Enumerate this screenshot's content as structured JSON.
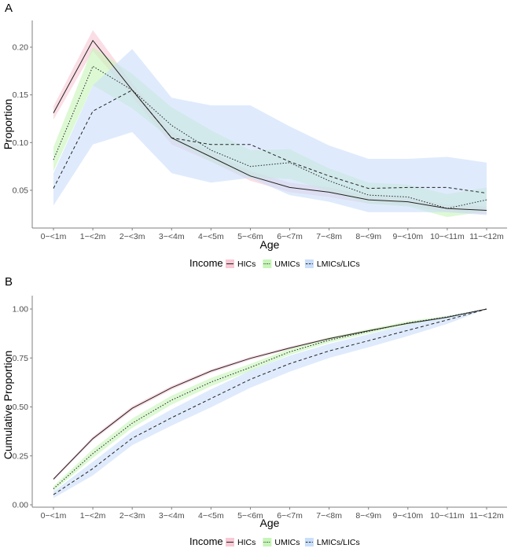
{
  "chart_data": [
    {
      "type": "line",
      "panel": "A",
      "title": "",
      "xlabel": "Age",
      "ylabel": "Proportion",
      "categories": [
        "0−<1m",
        "1−<2m",
        "2−<3m",
        "3−<4m",
        "4−<5m",
        "5−<6m",
        "6−<7m",
        "7−<8m",
        "8−<9m",
        "9−<10m",
        "10−<11m",
        "11−<12m"
      ],
      "ylim": [
        0.013,
        0.225
      ],
      "yticks": [
        0.05,
        0.1,
        0.15,
        0.2
      ],
      "ytick_labels": [
        "0.05",
        "0.10",
        "0.15",
        "0.20"
      ],
      "grid": false,
      "legend": {
        "title": "Income",
        "position": "bottom"
      },
      "series": [
        {
          "name": "HICs",
          "linestyle": "solid",
          "fill": "#f8c8d4",
          "values": [
            0.131,
            0.207,
            0.155,
            0.105,
            0.085,
            0.065,
            0.053,
            0.048,
            0.04,
            0.038,
            0.031,
            0.029
          ],
          "lower": [
            0.124,
            0.196,
            0.148,
            0.098,
            0.08,
            0.06,
            0.048,
            0.043,
            0.036,
            0.034,
            0.027,
            0.025
          ],
          "upper": [
            0.138,
            0.218,
            0.162,
            0.112,
            0.09,
            0.07,
            0.058,
            0.053,
            0.044,
            0.042,
            0.035,
            0.033
          ]
        },
        {
          "name": "UMICs",
          "linestyle": "dotted",
          "fill": "#c6f5b8",
          "values": [
            0.082,
            0.18,
            0.155,
            0.118,
            0.092,
            0.075,
            0.079,
            0.06,
            0.045,
            0.043,
            0.031,
            0.04
          ],
          "lower": [
            0.07,
            0.16,
            0.136,
            0.103,
            0.08,
            0.063,
            0.062,
            0.049,
            0.036,
            0.033,
            0.022,
            0.028
          ],
          "upper": [
            0.095,
            0.2,
            0.172,
            0.137,
            0.113,
            0.092,
            0.093,
            0.073,
            0.058,
            0.056,
            0.046,
            0.053
          ]
        },
        {
          "name": "LMICs/LICs",
          "linestyle": "dashed",
          "fill": "#c9defa",
          "values": [
            0.052,
            0.133,
            0.155,
            0.105,
            0.098,
            0.098,
            0.08,
            0.065,
            0.052,
            0.053,
            0.053,
            0.047
          ],
          "lower": [
            0.034,
            0.098,
            0.111,
            0.068,
            0.058,
            0.063,
            0.045,
            0.038,
            0.027,
            0.027,
            0.027,
            0.024
          ],
          "upper": [
            0.068,
            0.16,
            0.198,
            0.147,
            0.139,
            0.139,
            0.117,
            0.097,
            0.083,
            0.083,
            0.085,
            0.079
          ]
        }
      ]
    },
    {
      "type": "line",
      "panel": "B",
      "title": "",
      "xlabel": "Age",
      "ylabel": "Cumulative Proportion",
      "categories": [
        "0−<1m",
        "1−<2m",
        "2−<3m",
        "3−<4m",
        "4−<5m",
        "5−<6m",
        "6−<7m",
        "7−<8m",
        "8−<9m",
        "9−<10m",
        "10−<11m",
        "11−<12m"
      ],
      "ylim": [
        -0.01,
        1.05
      ],
      "yticks": [
        0.0,
        0.25,
        0.5,
        0.75,
        1.0
      ],
      "ytick_labels": [
        "0.00",
        "0.25",
        "0.50",
        "0.75",
        "1.00"
      ],
      "grid": false,
      "legend": {
        "title": "Income",
        "position": "bottom"
      },
      "series": [
        {
          "name": "HICs",
          "linestyle": "solid",
          "fill": "#f8c8d4",
          "values": [
            0.131,
            0.338,
            0.493,
            0.598,
            0.683,
            0.748,
            0.801,
            0.849,
            0.889,
            0.927,
            0.958,
            1.0
          ],
          "lower": [
            0.124,
            0.328,
            0.482,
            0.588,
            0.674,
            0.74,
            0.794,
            0.843,
            0.884,
            0.923,
            0.955,
            1.0
          ],
          "upper": [
            0.138,
            0.348,
            0.504,
            0.608,
            0.692,
            0.756,
            0.808,
            0.855,
            0.894,
            0.931,
            0.961,
            1.0
          ]
        },
        {
          "name": "UMICs",
          "linestyle": "dotted",
          "fill": "#c6f5b8",
          "values": [
            0.082,
            0.262,
            0.417,
            0.535,
            0.627,
            0.702,
            0.781,
            0.841,
            0.886,
            0.929,
            0.96,
            1.0
          ],
          "lower": [
            0.07,
            0.24,
            0.393,
            0.512,
            0.606,
            0.684,
            0.766,
            0.828,
            0.875,
            0.92,
            0.954,
            1.0
          ],
          "upper": [
            0.095,
            0.284,
            0.441,
            0.558,
            0.648,
            0.72,
            0.796,
            0.854,
            0.897,
            0.938,
            0.966,
            1.0
          ]
        },
        {
          "name": "LMICs/LICs",
          "linestyle": "dashed",
          "fill": "#c9defa",
          "values": [
            0.052,
            0.185,
            0.34,
            0.445,
            0.543,
            0.641,
            0.721,
            0.786,
            0.838,
            0.891,
            0.944,
            1.0
          ],
          "lower": [
            0.034,
            0.15,
            0.305,
            0.405,
            0.498,
            0.598,
            0.68,
            0.75,
            0.805,
            0.862,
            0.924,
            1.0
          ],
          "upper": [
            0.068,
            0.22,
            0.375,
            0.488,
            0.59,
            0.686,
            0.762,
            0.822,
            0.871,
            0.92,
            0.964,
            1.0
          ]
        }
      ]
    }
  ]
}
